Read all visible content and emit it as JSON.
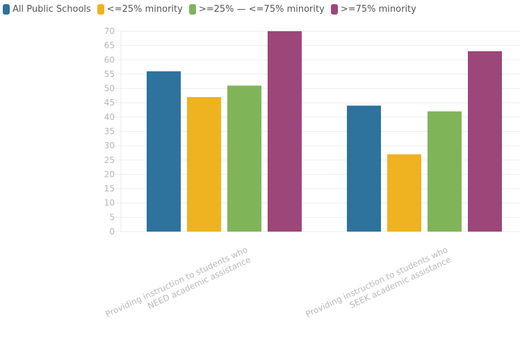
{
  "chart_data": {
    "type": "bar",
    "title": "",
    "xlabel": "",
    "ylabel": "",
    "ylim": [
      0,
      70
    ],
    "yticks": [
      0,
      5,
      10,
      15,
      20,
      25,
      30,
      35,
      40,
      45,
      50,
      55,
      60,
      65,
      70
    ],
    "grid": true,
    "legend_position": "top-left",
    "categories": [
      [
        "Providing instruction to students who",
        "NEED academic assistance"
      ],
      [
        "Providing instruction to students who",
        "SEEK academic assistance"
      ]
    ],
    "series": [
      {
        "name": "All Public Schools",
        "color": "#2e729e",
        "values": [
          56,
          44
        ]
      },
      {
        "name": "<=25% minority",
        "color": "#efb221",
        "values": [
          47,
          27
        ]
      },
      {
        "name": ">=25% — <=75% minority",
        "color": "#80b459",
        "values": [
          51,
          42
        ]
      },
      {
        "name": ">=75% minority",
        "color": "#9c4679",
        "values": [
          70,
          63
        ]
      }
    ]
  }
}
